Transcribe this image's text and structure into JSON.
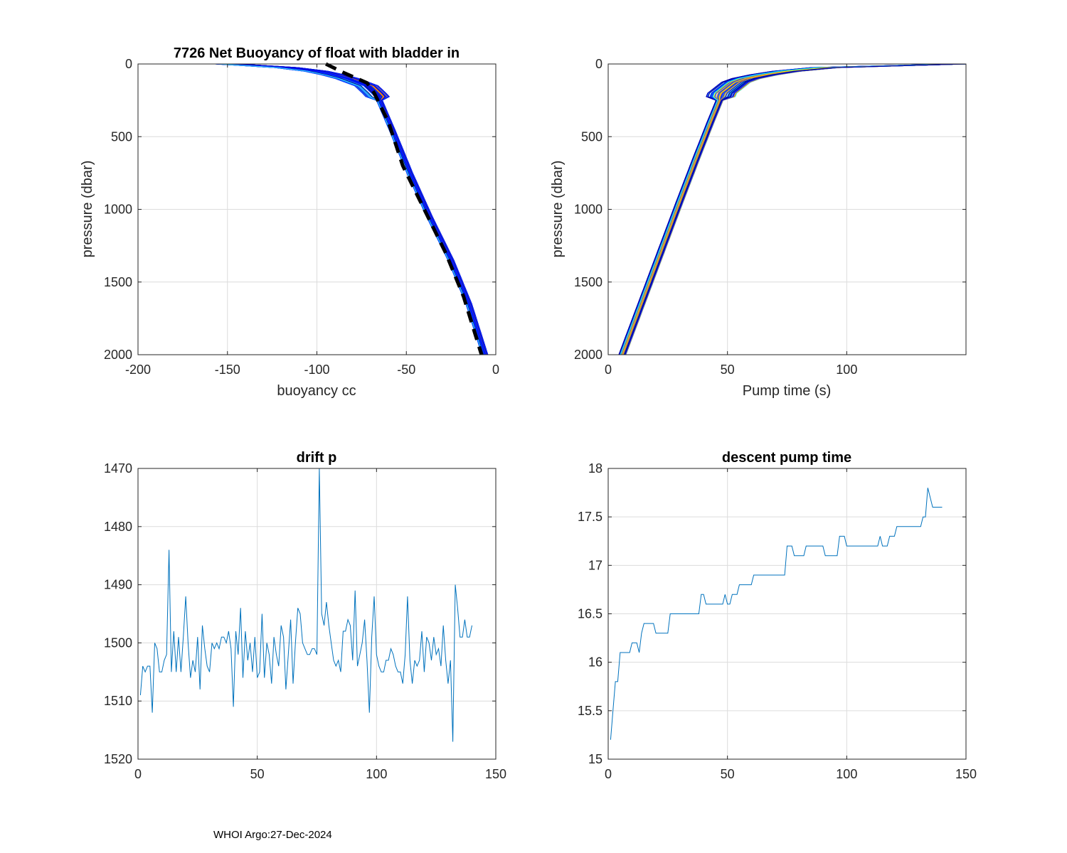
{
  "footer": "WHOI Argo:27-Dec-2024",
  "colors": {
    "line": "#0072bd",
    "mean": "#000000",
    "grid": "#dcdcdc",
    "axis": "#262626"
  },
  "chart_data": [
    {
      "id": "buoyancy",
      "type": "line",
      "title": "7726 Net Buoyancy of float with bladder in",
      "xlabel": "buoyancy cc",
      "ylabel": "pressure (dbar)",
      "xlim": [
        -200,
        0
      ],
      "ylim": [
        0,
        2000
      ],
      "y_reversed": true,
      "xticks": [
        -200,
        -150,
        -100,
        -50,
        0
      ],
      "yticks": [
        0,
        500,
        1000,
        1500,
        2000
      ],
      "grid": true,
      "series_description": "~140 profiles, colored by cycle (blue to red), clustered around mean",
      "mean_curve": {
        "name": "mean",
        "style": "dashed",
        "x": [
          -95,
          -85,
          -72,
          -68,
          -60,
          -52,
          -40,
          -28,
          -18,
          -8
        ],
        "y": [
          0,
          60,
          130,
          200,
          400,
          700,
          1000,
          1300,
          1600,
          2000
        ]
      },
      "envelope": {
        "x_base": [
          -150,
          -120,
          -100,
          -85,
          -72,
          -66,
          -58,
          -48,
          -37,
          -25,
          -15,
          -6
        ],
        "y_base": [
          0,
          20,
          50,
          90,
          150,
          220,
          450,
          750,
          1050,
          1350,
          1650,
          2000
        ]
      }
    },
    {
      "id": "pumptime",
      "type": "line",
      "title": "",
      "xlabel": "Pump time (s)",
      "ylabel": "pressure (dbar)",
      "xlim": [
        0,
        150
      ],
      "ylim": [
        0,
        2000
      ],
      "y_reversed": true,
      "xticks": [
        0,
        50,
        100
      ],
      "yticks": [
        0,
        500,
        1000,
        1500,
        2000
      ],
      "grid": true,
      "envelope": {
        "x_base": [
          150,
          110,
          85,
          70,
          55,
          48,
          43,
          37,
          30,
          22,
          14,
          6
        ],
        "y_base": [
          0,
          10,
          30,
          60,
          110,
          200,
          400,
          650,
          950,
          1300,
          1650,
          2000
        ]
      }
    },
    {
      "id": "driftp",
      "type": "line",
      "title": "drift p",
      "xlabel": "",
      "ylabel": "",
      "xlim": [
        0,
        150
      ],
      "ylim": [
        1470,
        1520
      ],
      "y_reversed": true,
      "xticks": [
        0,
        50,
        100,
        150
      ],
      "yticks": [
        1470,
        1480,
        1490,
        1500,
        1510,
        1520
      ],
      "grid": true,
      "series": [
        {
          "name": "drift p",
          "values": [
            1509,
            1504,
            1505,
            1504,
            1504,
            1512,
            1500,
            1501,
            1505,
            1505,
            1503,
            1502,
            1484,
            1505,
            1498,
            1505,
            1499,
            1505,
            1499,
            1492,
            1500,
            1506,
            1503,
            1505,
            1499,
            1508,
            1497,
            1501,
            1504,
            1505,
            1500,
            1501,
            1500,
            1501,
            1499,
            1499,
            1500,
            1498,
            1501,
            1511,
            1498,
            1502,
            1494,
            1506,
            1498,
            1503,
            1500,
            1505,
            1499,
            1506,
            1505,
            1495,
            1506,
            1500,
            1502,
            1507,
            1499,
            1502,
            1504,
            1497,
            1499,
            1508,
            1502,
            1496,
            1507,
            1500,
            1494,
            1495,
            1500,
            1501,
            1502,
            1502,
            1501,
            1501,
            1502,
            1470,
            1495,
            1497,
            1493,
            1497,
            1500,
            1503,
            1504,
            1503,
            1505,
            1498,
            1498,
            1496,
            1497,
            1503,
            1491,
            1504,
            1502,
            1500,
            1496,
            1503,
            1512,
            1499,
            1492,
            1502,
            1504,
            1505,
            1505,
            1503,
            1503,
            1501,
            1502,
            1504,
            1505,
            1505,
            1507,
            1502,
            1492,
            1503,
            1507,
            1503,
            1504,
            1503,
            1498,
            1505,
            1499,
            1500,
            1503,
            1499,
            1502,
            1501,
            1504,
            1497,
            1503,
            1507,
            1503,
            1517,
            1490,
            1494,
            1499,
            1499,
            1496,
            1499,
            1499,
            1497
          ]
        }
      ]
    },
    {
      "id": "descentpump",
      "type": "line",
      "title": "descent pump time",
      "xlabel": "",
      "ylabel": "",
      "xlim": [
        0,
        150
      ],
      "ylim": [
        15,
        18
      ],
      "y_reversed": false,
      "xticks": [
        0,
        50,
        100,
        150
      ],
      "yticks": [
        15,
        15.5,
        16,
        16.5,
        17,
        17.5,
        18
      ],
      "grid": true,
      "series": [
        {
          "name": "descent pump time",
          "values": [
            15.2,
            15.5,
            15.8,
            15.8,
            16.1,
            16.1,
            16.1,
            16.1,
            16.1,
            16.2,
            16.2,
            16.2,
            16.1,
            16.3,
            16.4,
            16.4,
            16.4,
            16.4,
            16.4,
            16.3,
            16.3,
            16.3,
            16.3,
            16.3,
            16.3,
            16.5,
            16.5,
            16.5,
            16.5,
            16.5,
            16.5,
            16.5,
            16.5,
            16.5,
            16.5,
            16.5,
            16.5,
            16.5,
            16.7,
            16.7,
            16.6,
            16.6,
            16.6,
            16.6,
            16.6,
            16.6,
            16.6,
            16.6,
            16.7,
            16.6,
            16.6,
            16.7,
            16.7,
            16.7,
            16.8,
            16.8,
            16.8,
            16.8,
            16.8,
            16.8,
            16.9,
            16.9,
            16.9,
            16.9,
            16.9,
            16.9,
            16.9,
            16.9,
            16.9,
            16.9,
            16.9,
            16.9,
            16.9,
            16.9,
            17.2,
            17.2,
            17.2,
            17.1,
            17.1,
            17.1,
            17.1,
            17.1,
            17.2,
            17.2,
            17.2,
            17.2,
            17.2,
            17.2,
            17.2,
            17.2,
            17.1,
            17.1,
            17.1,
            17.1,
            17.1,
            17.1,
            17.3,
            17.3,
            17.3,
            17.2,
            17.2,
            17.2,
            17.2,
            17.2,
            17.2,
            17.2,
            17.2,
            17.2,
            17.2,
            17.2,
            17.2,
            17.2,
            17.2,
            17.3,
            17.2,
            17.2,
            17.2,
            17.3,
            17.3,
            17.3,
            17.4,
            17.4,
            17.4,
            17.4,
            17.4,
            17.4,
            17.4,
            17.4,
            17.4,
            17.4,
            17.4,
            17.5,
            17.5,
            17.8,
            17.7,
            17.6,
            17.6,
            17.6,
            17.6,
            17.6
          ]
        }
      ]
    }
  ]
}
